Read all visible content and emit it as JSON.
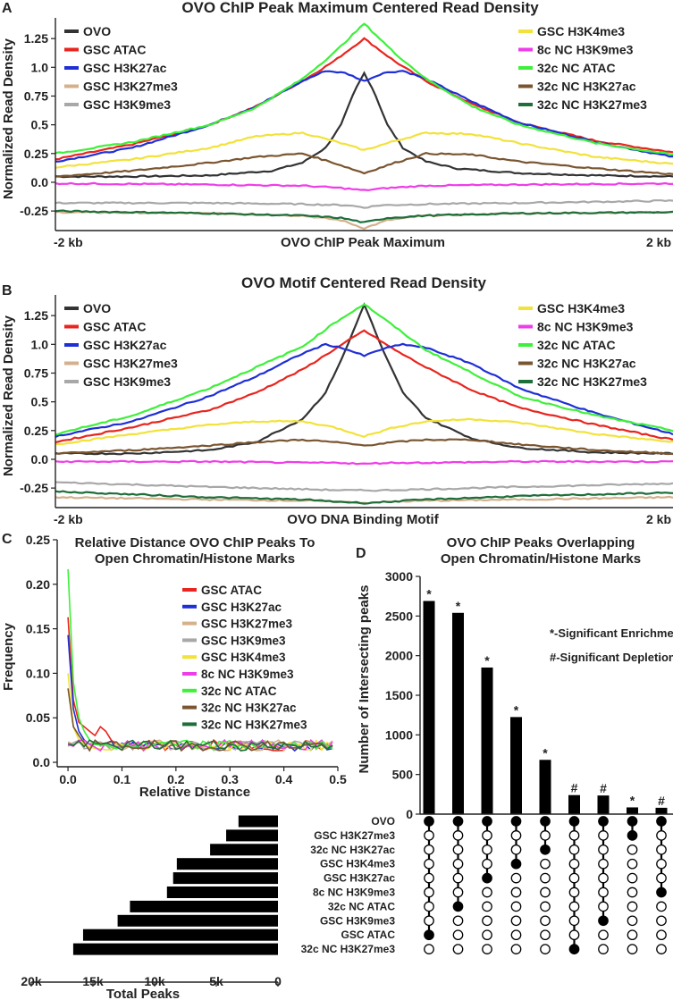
{
  "colors": {
    "OVO": "#333333",
    "GSC ATAC": "#e8251e",
    "GSC H3K27ac": "#1f2fd6",
    "GSC H3K27me3": "#d4b08c",
    "GSC H3K9me3": "#a8a8a8",
    "GSC H3K4me3": "#f2e23a",
    "8c NC H3K9me3": "#ee3ee8",
    "32c NC ATAC": "#3ef03a",
    "32c NC H3K27ac": "#7a5530",
    "32c NC H3K27me3": "#1e6e3a"
  },
  "chart_data": [
    {
      "id": "A",
      "panel_letter": "A",
      "type": "line",
      "title": "OVO ChIP Peak Maximum Centered Read Density",
      "xlabel": "OVO ChIP Peak Maximum",
      "ylabel": "Normalized Read Density",
      "x_tick_left": "-2 kb",
      "x_tick_right": "2 kb",
      "xlim": [
        -2000,
        2000
      ],
      "ylim": [
        -0.42,
        1.43
      ],
      "yticks": [
        -0.25,
        0.0,
        0.25,
        0.5,
        0.75,
        1.0,
        1.25
      ],
      "ytick_labels": [
        "-0.25",
        "0.0",
        "0.25",
        "0.5",
        "0.75",
        "1.0",
        "1.25"
      ],
      "legend_left": [
        "OVO",
        "GSC ATAC",
        "GSC H3K27ac",
        "GSC H3K27me3",
        "GSC H3K9me3"
      ],
      "legend_right": [
        "GSC H3K4me3",
        "8c NC H3K9me3",
        "32c NC ATAC",
        "32c NC H3K27ac",
        "32c NC H3K27me3"
      ],
      "series": [
        {
          "name": "OVO",
          "x": [
            -2000,
            -1500,
            -1000,
            -600,
            -400,
            -250,
            -150,
            -60,
            0,
            60,
            150,
            250,
            400,
            600,
            1000,
            1500,
            2000
          ],
          "values": [
            0.05,
            0.05,
            0.06,
            0.1,
            0.17,
            0.3,
            0.5,
            0.8,
            0.95,
            0.8,
            0.5,
            0.3,
            0.18,
            0.12,
            0.08,
            0.06,
            0.05
          ]
        },
        {
          "name": "GSC ATAC",
          "x": [
            -2000,
            -1500,
            -1000,
            -700,
            -400,
            -200,
            0,
            200,
            400,
            700,
            1000,
            1500,
            2000
          ],
          "values": [
            0.2,
            0.33,
            0.5,
            0.66,
            0.88,
            1.05,
            1.25,
            1.05,
            0.88,
            0.68,
            0.52,
            0.36,
            0.26
          ]
        },
        {
          "name": "GSC H3K27ac",
          "x": [
            -2000,
            -1500,
            -1000,
            -700,
            -400,
            -250,
            -120,
            0,
            120,
            250,
            400,
            700,
            1000,
            1500,
            2000
          ],
          "values": [
            0.18,
            0.3,
            0.5,
            0.66,
            0.88,
            0.97,
            0.95,
            0.88,
            0.95,
            0.97,
            0.9,
            0.7,
            0.52,
            0.35,
            0.22
          ]
        },
        {
          "name": "GSC H3K27me3",
          "x": [
            -2000,
            -1000,
            -400,
            -150,
            0,
            150,
            400,
            1000,
            2000
          ],
          "values": [
            -0.26,
            -0.27,
            -0.29,
            -0.33,
            -0.4,
            -0.33,
            -0.29,
            -0.27,
            -0.26
          ]
        },
        {
          "name": "GSC H3K9me3",
          "x": [
            -2000,
            -1000,
            -400,
            -100,
            0,
            100,
            400,
            1000,
            2000
          ],
          "values": [
            -0.18,
            -0.18,
            -0.19,
            -0.2,
            -0.22,
            -0.2,
            -0.19,
            -0.18,
            -0.16
          ]
        },
        {
          "name": "GSC H3K4me3",
          "x": [
            -2000,
            -1500,
            -1000,
            -700,
            -400,
            -200,
            0,
            200,
            400,
            700,
            1000,
            1500,
            2000
          ],
          "values": [
            0.13,
            0.2,
            0.3,
            0.4,
            0.43,
            0.36,
            0.28,
            0.36,
            0.43,
            0.42,
            0.34,
            0.22,
            0.16
          ]
        },
        {
          "name": "8c NC H3K9me3",
          "x": [
            -2000,
            -1000,
            -400,
            -150,
            0,
            150,
            400,
            1000,
            2000
          ],
          "values": [
            -0.01,
            -0.02,
            -0.03,
            -0.05,
            -0.07,
            -0.05,
            -0.03,
            -0.02,
            -0.01
          ]
        },
        {
          "name": "32c NC ATAC",
          "x": [
            -2000,
            -1500,
            -1000,
            -700,
            -400,
            -200,
            0,
            200,
            400,
            700,
            1000,
            1500,
            2000
          ],
          "values": [
            0.25,
            0.35,
            0.5,
            0.65,
            0.9,
            1.12,
            1.38,
            1.12,
            0.9,
            0.66,
            0.5,
            0.34,
            0.24
          ]
        },
        {
          "name": "32c NC H3K27ac",
          "x": [
            -2000,
            -1500,
            -1000,
            -700,
            -400,
            -200,
            0,
            200,
            400,
            700,
            1000,
            1500,
            2000
          ],
          "values": [
            0.05,
            0.1,
            0.17,
            0.22,
            0.25,
            0.17,
            0.08,
            0.17,
            0.25,
            0.24,
            0.18,
            0.12,
            0.07
          ]
        },
        {
          "name": "32c NC H3K27me3",
          "x": [
            -2000,
            -1000,
            -400,
            -150,
            0,
            150,
            400,
            1000,
            2000
          ],
          "values": [
            -0.25,
            -0.27,
            -0.29,
            -0.31,
            -0.35,
            -0.31,
            -0.29,
            -0.27,
            -0.26
          ]
        }
      ]
    },
    {
      "id": "B",
      "panel_letter": "B",
      "type": "line",
      "title": "OVO Motif Centered Read Density",
      "xlabel": "OVO DNA Binding Motif",
      "ylabel": "Normalized Read Density",
      "x_tick_left": "-2 kb",
      "x_tick_right": "2 kb",
      "xlim": [
        -2000,
        2000
      ],
      "ylim": [
        -0.42,
        1.43
      ],
      "yticks": [
        -0.25,
        0.0,
        0.25,
        0.5,
        0.75,
        1.0,
        1.25
      ],
      "ytick_labels": [
        "-0.25",
        "0.0",
        "0.25",
        "0.5",
        "0.75",
        "1.0",
        "1.25"
      ],
      "legend_left": [
        "OVO",
        "GSC ATAC",
        "GSC H3K27ac",
        "GSC H3K27me3",
        "GSC H3K9me3"
      ],
      "legend_right": [
        "GSC H3K4me3",
        "8c NC H3K9me3",
        "32c NC ATAC",
        "32c NC H3K27ac",
        "32c NC H3K27me3"
      ],
      "series": [
        {
          "name": "OVO",
          "x": [
            -2000,
            -1500,
            -1000,
            -700,
            -400,
            -250,
            -120,
            0,
            120,
            250,
            400,
            700,
            1000,
            1500,
            2000
          ],
          "values": [
            0.05,
            0.05,
            0.08,
            0.15,
            0.35,
            0.58,
            0.95,
            1.35,
            0.95,
            0.58,
            0.36,
            0.18,
            0.1,
            0.06,
            0.05
          ]
        },
        {
          "name": "GSC ATAC",
          "x": [
            -2000,
            -1500,
            -1000,
            -700,
            -400,
            -200,
            0,
            200,
            400,
            700,
            1000,
            1500,
            2000
          ],
          "values": [
            0.15,
            0.28,
            0.43,
            0.58,
            0.78,
            0.95,
            1.12,
            0.95,
            0.8,
            0.6,
            0.45,
            0.3,
            0.17
          ]
        },
        {
          "name": "GSC H3K27ac",
          "x": [
            -2000,
            -1500,
            -1000,
            -700,
            -400,
            -250,
            -120,
            0,
            120,
            250,
            400,
            700,
            1000,
            1500,
            2000
          ],
          "values": [
            0.2,
            0.33,
            0.55,
            0.72,
            0.92,
            1.0,
            0.96,
            0.9,
            0.96,
            1.0,
            0.97,
            0.83,
            0.62,
            0.4,
            0.22
          ]
        },
        {
          "name": "GSC H3K27me3",
          "x": [
            -2000,
            -1000,
            -400,
            -150,
            0,
            150,
            400,
            1000,
            2000
          ],
          "values": [
            -0.33,
            -0.35,
            -0.36,
            -0.37,
            -0.38,
            -0.37,
            -0.36,
            -0.35,
            -0.33
          ]
        },
        {
          "name": "GSC H3K9me3",
          "x": [
            -2000,
            -1000,
            -400,
            -100,
            0,
            100,
            400,
            1000,
            2000
          ],
          "values": [
            -0.2,
            -0.24,
            -0.26,
            -0.27,
            -0.27,
            -0.27,
            -0.26,
            -0.24,
            -0.21
          ]
        },
        {
          "name": "GSC H3K4me3",
          "x": [
            -2000,
            -1500,
            -1000,
            -700,
            -400,
            -200,
            0,
            200,
            400,
            700,
            1000,
            1500,
            2000
          ],
          "values": [
            0.13,
            0.22,
            0.3,
            0.33,
            0.33,
            0.28,
            0.2,
            0.28,
            0.33,
            0.35,
            0.32,
            0.22,
            0.15
          ]
        },
        {
          "name": "8c NC H3K9me3",
          "x": [
            -2000,
            -1000,
            -400,
            -150,
            0,
            150,
            400,
            1000,
            2000
          ],
          "values": [
            -0.02,
            -0.02,
            -0.03,
            -0.03,
            -0.04,
            -0.03,
            -0.03,
            -0.02,
            -0.02
          ]
        },
        {
          "name": "32c NC ATAC",
          "x": [
            -2000,
            -1500,
            -1000,
            -700,
            -400,
            -200,
            0,
            200,
            400,
            700,
            1000,
            1500,
            2000
          ],
          "values": [
            0.22,
            0.38,
            0.62,
            0.8,
            0.98,
            1.18,
            1.35,
            1.15,
            0.95,
            0.75,
            0.55,
            0.38,
            0.25
          ]
        },
        {
          "name": "32c NC H3K27ac",
          "x": [
            -2000,
            -1500,
            -1000,
            -700,
            -400,
            -200,
            0,
            200,
            400,
            700,
            1000,
            1500,
            2000
          ],
          "values": [
            0.05,
            0.08,
            0.12,
            0.15,
            0.17,
            0.15,
            0.12,
            0.15,
            0.17,
            0.17,
            0.13,
            0.08,
            0.05
          ]
        },
        {
          "name": "32c NC H3K27me3",
          "x": [
            -2000,
            -1000,
            -400,
            -150,
            0,
            150,
            400,
            1000,
            2000
          ],
          "values": [
            -0.28,
            -0.33,
            -0.35,
            -0.37,
            -0.38,
            -0.37,
            -0.35,
            -0.32,
            -0.29
          ]
        }
      ]
    },
    {
      "id": "C",
      "panel_letter": "C",
      "type": "line",
      "title_line1": "Relative Distance OVO ChIP Peaks To",
      "title_line2": "Open Chromatin/Histone Marks",
      "xlabel": "Relative Distance",
      "ylabel": "Frequency",
      "xlim": [
        -0.02,
        0.5
      ],
      "ylim": [
        -0.005,
        0.25
      ],
      "xticks": [
        0.0,
        0.1,
        0.2,
        0.3,
        0.4,
        0.5
      ],
      "xtick_labels": [
        "0.0",
        "0.1",
        "0.2",
        "0.3",
        "0.4",
        "0.5"
      ],
      "yticks": [
        0.0,
        0.05,
        0.1,
        0.15,
        0.2,
        0.25
      ],
      "ytick_labels": [
        "0.0",
        "0.05",
        "0.10",
        "0.15",
        "0.20",
        "0.25"
      ],
      "legend": [
        "GSC ATAC",
        "GSC H3K27ac",
        "GSC H3K27me3",
        "GSC H3K9me3",
        "GSC H3K4me3",
        "8c NC H3K9me3",
        "32c NC ATAC",
        "32c NC H3K27ac",
        "32c NC H3K27me3"
      ],
      "series": [
        {
          "name": "GSC ATAC",
          "start": [
            0.163,
            0.07,
            0.045,
            0.04,
            0.035,
            0.03,
            0.04,
            0.035,
            0.025,
            0.02
          ]
        },
        {
          "name": "GSC H3K27ac",
          "start": [
            0.143,
            0.06,
            0.035,
            0.025,
            0.02
          ]
        },
        {
          "name": "GSC H3K27me3",
          "start": [
            0.023,
            0.02
          ]
        },
        {
          "name": "GSC H3K9me3",
          "start": [
            0.018,
            0.022
          ]
        },
        {
          "name": "GSC H3K4me3",
          "start": [
            0.1,
            0.04,
            0.025,
            0.02
          ]
        },
        {
          "name": "8c NC H3K9me3",
          "start": [
            0.02,
            0.018
          ]
        },
        {
          "name": "32c NC ATAC",
          "start": [
            0.217,
            0.09,
            0.05,
            0.035,
            0.025,
            0.02
          ]
        },
        {
          "name": "32c NC H3K27ac",
          "start": [
            0.083,
            0.04,
            0.03,
            0.022
          ]
        },
        {
          "name": "32c NC H3K27me3",
          "start": [
            0.021,
            0.019
          ]
        }
      ]
    },
    {
      "id": "D",
      "panel_letter": "D",
      "type": "bar",
      "title_line1": "OVO ChIP Peaks Overlapping",
      "title_line2": "Open Chromatin/Histone Marks",
      "ylabel": "Number of Intersecting peaks",
      "ylim": [
        0,
        3000
      ],
      "yticks": [
        0,
        500,
        1000,
        1500,
        2000,
        2500,
        3000
      ],
      "ytick_labels": [
        "0",
        "500",
        "1000",
        "1500",
        "2000",
        "2500",
        "3000"
      ],
      "values": [
        2690,
        2540,
        1850,
        1225,
        685,
        240,
        235,
        85,
        80
      ],
      "marks": [
        "*",
        "*",
        "*",
        "*",
        "*",
        "#",
        "#",
        "*",
        "#"
      ],
      "note_enrichment": "*-Significant Enrichment",
      "note_depletion": "#-Significant Depletion",
      "set_labels": [
        "OVO",
        "GSC H3K27me3",
        "32c NC H3K27ac",
        "GSC H3K4me3",
        "GSC H3K27ac",
        "8c NC H3K9me3",
        "32c NC ATAC",
        "GSC H3K9me3",
        "GSC ATAC",
        "32c NC H3K27me3"
      ],
      "set_totals": [
        3200,
        4200,
        5500,
        8200,
        8500,
        9000,
        12000,
        13000,
        15800,
        16600
      ],
      "xtick_values": [
        20000,
        15000,
        10000,
        5000,
        0
      ],
      "xtick_labels": [
        "20k",
        "15k",
        "10k",
        "5k",
        "0"
      ],
      "xlabel": "Total Peaks",
      "intersections": [
        [
          0,
          8
        ],
        [
          0,
          6
        ],
        [
          0,
          4
        ],
        [
          0,
          3
        ],
        [
          0,
          2
        ],
        [
          0,
          9
        ],
        [
          0,
          7
        ],
        [
          0,
          1
        ],
        [
          0,
          5
        ]
      ]
    }
  ]
}
